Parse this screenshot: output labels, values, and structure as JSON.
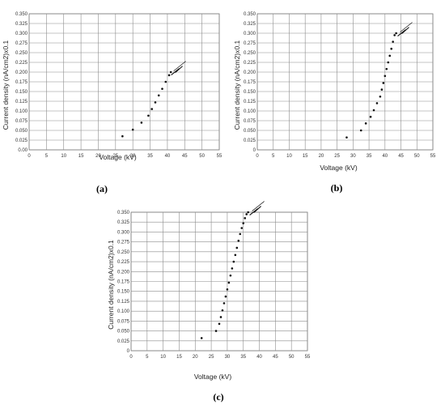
{
  "chart_data": [
    {
      "type": "scatter",
      "panel_label": "(a)",
      "xlabel": "Voltage (kV)",
      "ylabel": "Current density (nA/cm2)x0.1",
      "xlim": [
        0,
        55
      ],
      "ylim": [
        0,
        0.35
      ],
      "xticks": [
        "0",
        "5",
        "10",
        "15",
        "20",
        "25",
        "30",
        "35",
        "40",
        "45",
        "50",
        "55"
      ],
      "yticks": [
        "0.00",
        "0.025",
        "0.050",
        "0.075",
        "0.100",
        "0.125",
        "0.150",
        "0.175",
        "0.200",
        "0.225",
        "0.250",
        "0.275",
        "0.300",
        "0.325",
        "0.350"
      ],
      "grid": true,
      "series": [
        {
          "x": [
            27,
            30,
            32.5,
            34.5,
            35.5,
            36.5,
            37.5,
            38.5,
            39.5,
            40.5,
            41
          ],
          "y": [
            0.035,
            0.052,
            0.07,
            0.088,
            0.105,
            0.122,
            0.14,
            0.157,
            0.175,
            0.192,
            0.2
          ]
        }
      ],
      "breakdown_marker": {
        "x": 42.5,
        "y": 0.205
      }
    },
    {
      "type": "scatter",
      "panel_label": "(b)",
      "xlabel": "Voltage (kV)",
      "ylabel": "Current density (nA/cm2)x0.1",
      "xlim": [
        0,
        55
      ],
      "ylim": [
        0,
        0.35
      ],
      "xticks": [
        "0",
        "5",
        "10",
        "15",
        "20",
        "25",
        "30",
        "35",
        "40",
        "45",
        "50",
        "55"
      ],
      "yticks": [
        "0",
        "0.025",
        "0.050",
        "0.075",
        "0.100",
        "0.125",
        "0.150",
        "0.175",
        "0.200",
        "0.225",
        "0.250",
        "0.275",
        "0.300",
        "0.325",
        "0.350"
      ],
      "grid": true,
      "series": [
        {
          "x": [
            28,
            32.5,
            34,
            35.5,
            36.5,
            37.5,
            38.5,
            39,
            39.5,
            40,
            40.5,
            41,
            41.5,
            42,
            42.5,
            43,
            43.5
          ],
          "y": [
            0.032,
            0.05,
            0.068,
            0.085,
            0.102,
            0.12,
            0.137,
            0.155,
            0.172,
            0.19,
            0.208,
            0.225,
            0.242,
            0.26,
            0.278,
            0.295,
            0.3
          ]
        }
      ],
      "breakdown_marker": {
        "x": 45.5,
        "y": 0.305
      }
    },
    {
      "type": "scatter",
      "panel_label": "(c)",
      "xlabel": "Voltage (kV)",
      "ylabel": "Current density (nA/cm2)x0.1",
      "xlim": [
        0,
        55
      ],
      "ylim": [
        0,
        0.35
      ],
      "xticks": [
        "0",
        "5",
        "10",
        "15",
        "20",
        "25",
        "30",
        "35",
        "40",
        "45",
        "50",
        "55"
      ],
      "yticks": [
        "0",
        "0.025",
        "0.050",
        "0.075",
        "0.100",
        "0.125",
        "0.150",
        "0.175",
        "0.200",
        "0.225",
        "0.250",
        "0.275",
        "0.300",
        "0.325",
        "0.350"
      ],
      "grid": true,
      "series": [
        {
          "x": [
            22,
            26.5,
            27.5,
            28,
            28.5,
            29,
            29.5,
            30,
            30.5,
            31,
            31.5,
            32,
            32.5,
            33,
            33.5,
            34,
            34.5,
            35,
            35.5,
            36,
            36.5
          ],
          "y": [
            0.032,
            0.05,
            0.068,
            0.085,
            0.102,
            0.12,
            0.137,
            0.155,
            0.172,
            0.19,
            0.208,
            0.225,
            0.242,
            0.26,
            0.278,
            0.295,
            0.31,
            0.322,
            0.335,
            0.345,
            0.35
          ]
        }
      ],
      "breakdown_marker": {
        "x": 38.5,
        "y": 0.355
      }
    }
  ]
}
